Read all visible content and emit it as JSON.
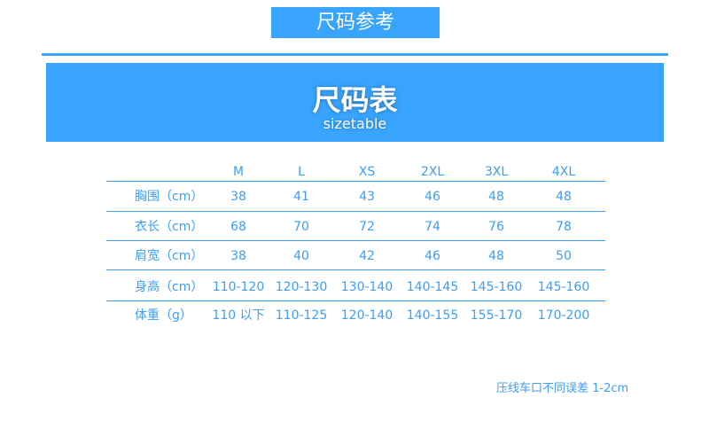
{
  "tag": "尺码参考",
  "banner": {
    "title": "尺码表",
    "subtitle": "sizetable"
  },
  "table": {
    "headers": [
      "M",
      "L",
      "XS",
      "2XL",
      "3XL",
      "4XL"
    ],
    "rows": [
      {
        "label": "胸围（cm）",
        "values": [
          "38",
          "41",
          "43",
          "46",
          "48",
          "48"
        ]
      },
      {
        "label": "衣长（cm）",
        "values": [
          "68",
          "70",
          "72",
          "74",
          "76",
          "78"
        ]
      },
      {
        "label": "肩宽（cm）",
        "values": [
          "38",
          "40",
          "42",
          "46",
          "48",
          "50"
        ]
      },
      {
        "label": "身高（cm）",
        "values": [
          "110-120",
          "120-130",
          "130-140",
          "140-145",
          "145-160",
          "145-160"
        ]
      },
      {
        "label": "体重（g）",
        "values": [
          "110 以下",
          "110-125",
          "120-140",
          "140-155",
          "155-170",
          "170-200"
        ]
      }
    ]
  },
  "note": "压线车口不同误差 1-2cm",
  "colors": {
    "accent": "#38a4fe",
    "text": "#3b9ff5"
  }
}
